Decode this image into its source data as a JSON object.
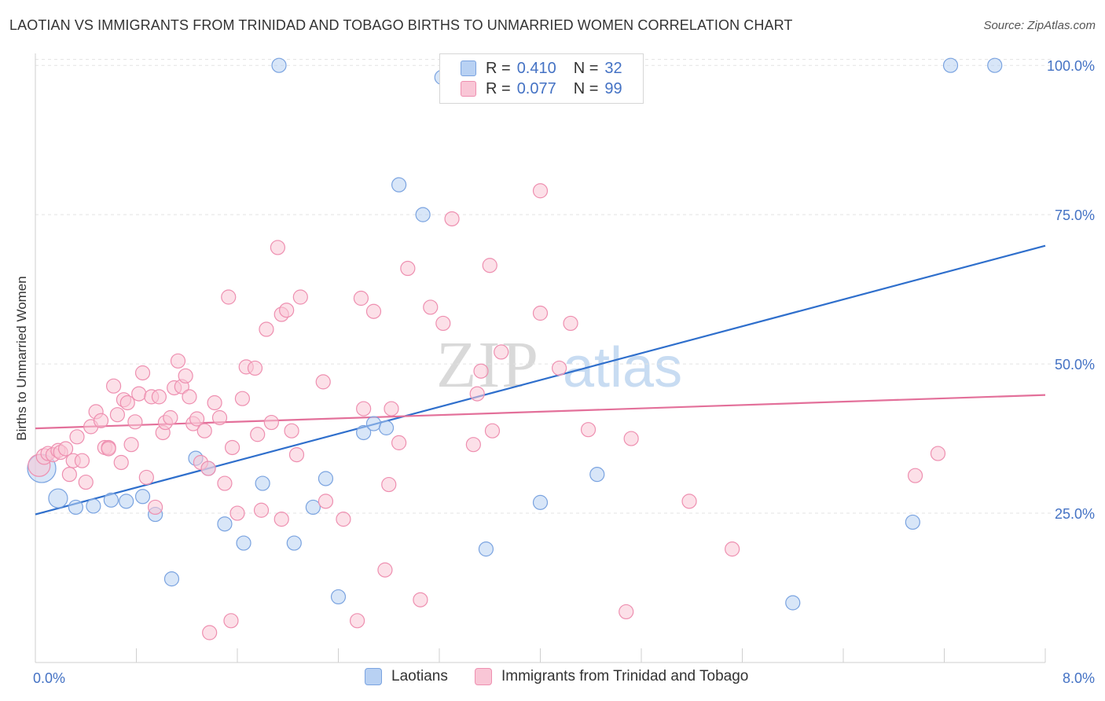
{
  "title": "LAOTIAN VS IMMIGRANTS FROM TRINIDAD AND TOBAGO BIRTHS TO UNMARRIED WOMEN CORRELATION CHART",
  "source": "Source: ZipAtlas.com",
  "legend": {
    "rows": [
      {
        "r_label": "R =",
        "r_value": "0.410",
        "n_label": "N =",
        "n_value": "32",
        "fill": "#b8d1f3",
        "stroke": "#7aa3e0"
      },
      {
        "r_label": "R =",
        "r_value": "0.077",
        "n_label": "N =",
        "n_value": "99",
        "fill": "#f9c6d6",
        "stroke": "#ee8fb0"
      }
    ]
  },
  "bottom_legend": [
    {
      "label": "Laotians",
      "fill": "#b8d1f3",
      "stroke": "#7aa3e0"
    },
    {
      "label": "Immigrants from Trinidad and Tobago",
      "fill": "#f9c6d6",
      "stroke": "#ee8fb0"
    }
  ],
  "colors": {
    "blue_line": "#2f6fcc",
    "pink_line": "#e3709a",
    "grid": "#e3e3e3"
  },
  "chart_data": {
    "type": "scatter",
    "title": "LAOTIAN VS IMMIGRANTS FROM TRINIDAD AND TOBAGO BIRTHS TO UNMARRIED WOMEN CORRELATION CHART",
    "xlabel": "",
    "ylabel": "Births to Unmarried Women",
    "xlim": [
      0,
      8
    ],
    "ylim": [
      0,
      102
    ],
    "x_tick_labels": [
      "0.0%",
      "8.0%"
    ],
    "y_ticks": [
      25,
      50,
      75,
      100
    ],
    "y_tick_labels": [
      "25.0%",
      "50.0%",
      "75.0%",
      "100.0%"
    ],
    "grid": true,
    "series": [
      {
        "name": "Laotians",
        "color": "#b8d1f3",
        "stroke": "#7aa3e0",
        "trend": {
          "x": [
            0,
            8
          ],
          "y": [
            24.8,
            69.8
          ]
        },
        "points": [
          [
            0.05,
            32.5,
            18
          ],
          [
            0.18,
            27.5,
            12
          ],
          [
            0.32,
            26,
            9
          ],
          [
            0.46,
            26.2,
            9
          ],
          [
            0.6,
            27.2,
            9
          ],
          [
            0.72,
            27,
            9
          ],
          [
            0.85,
            27.8,
            9
          ],
          [
            0.95,
            24.8,
            9
          ],
          [
            1.08,
            14,
            9
          ],
          [
            1.27,
            34.2,
            9
          ],
          [
            1.37,
            32.5,
            9
          ],
          [
            1.5,
            23.2,
            9
          ],
          [
            1.65,
            20,
            9
          ],
          [
            1.8,
            30,
            9
          ],
          [
            1.93,
            100,
            9
          ],
          [
            2.05,
            20,
            9
          ],
          [
            2.2,
            26,
            9
          ],
          [
            2.3,
            30.8,
            9
          ],
          [
            2.4,
            11,
            9
          ],
          [
            2.6,
            38.5,
            9
          ],
          [
            2.68,
            40,
            9
          ],
          [
            2.78,
            39.3,
            9
          ],
          [
            2.88,
            80,
            9
          ],
          [
            3.07,
            75,
            9
          ],
          [
            3.22,
            98,
            9
          ],
          [
            3.57,
            19,
            9
          ],
          [
            4.0,
            26.8,
            9
          ],
          [
            4.45,
            31.5,
            9
          ],
          [
            6.0,
            10,
            9
          ],
          [
            6.95,
            23.5,
            9
          ],
          [
            7.25,
            100,
            9
          ],
          [
            7.6,
            100,
            9
          ]
        ]
      },
      {
        "name": "Immigrants from Trinidad and Tobago",
        "color": "#f9c6d6",
        "stroke": "#ee8fb0",
        "trend": {
          "x": [
            0,
            8
          ],
          "y": [
            39.2,
            44.8
          ]
        },
        "points": [
          [
            0.03,
            33,
            14
          ],
          [
            0.07,
            34.5,
            10
          ],
          [
            0.1,
            35,
            9
          ],
          [
            0.14,
            34.8,
            9
          ],
          [
            0.18,
            35.5,
            9
          ],
          [
            0.2,
            35.2,
            9
          ],
          [
            0.24,
            35.8,
            9
          ],
          [
            0.27,
            31.5,
            9
          ],
          [
            0.3,
            33.8,
            9
          ],
          [
            0.33,
            37.8,
            9
          ],
          [
            0.37,
            33.8,
            9
          ],
          [
            0.4,
            30.2,
            9
          ],
          [
            0.44,
            39.5,
            9
          ],
          [
            0.48,
            42,
            9
          ],
          [
            0.52,
            40.5,
            9
          ],
          [
            0.55,
            36,
            9
          ],
          [
            0.58,
            36,
            9
          ],
          [
            0.62,
            46.3,
            9
          ],
          [
            0.65,
            41.5,
            9
          ],
          [
            0.68,
            33.5,
            9
          ],
          [
            0.7,
            44,
            9
          ],
          [
            0.73,
            43.5,
            9
          ],
          [
            0.76,
            36.5,
            9
          ],
          [
            0.79,
            40.3,
            9
          ],
          [
            0.82,
            45,
            9
          ],
          [
            0.85,
            48.5,
            9
          ],
          [
            0.88,
            31,
            9
          ],
          [
            0.92,
            44.5,
            9
          ],
          [
            0.95,
            26,
            9
          ],
          [
            0.98,
            44.5,
            9
          ],
          [
            1.01,
            38.5,
            9
          ],
          [
            1.03,
            40.2,
            9
          ],
          [
            1.07,
            41,
            9
          ],
          [
            1.1,
            46,
            9
          ],
          [
            1.13,
            50.5,
            9
          ],
          [
            1.16,
            46.2,
            9
          ],
          [
            1.19,
            48,
            9
          ],
          [
            1.22,
            44.5,
            9
          ],
          [
            1.25,
            40,
            9
          ],
          [
            1.28,
            40.8,
            9
          ],
          [
            1.31,
            33.5,
            9
          ],
          [
            1.34,
            38.8,
            9
          ],
          [
            1.37,
            32.5,
            9
          ],
          [
            1.42,
            43.5,
            9
          ],
          [
            1.46,
            41,
            9
          ],
          [
            1.5,
            30,
            9
          ],
          [
            1.53,
            61.2,
            9
          ],
          [
            1.56,
            36,
            9
          ],
          [
            1.6,
            25,
            9
          ],
          [
            1.64,
            44.2,
            9
          ],
          [
            1.67,
            49.5,
            9
          ],
          [
            1.74,
            49.3,
            9
          ],
          [
            1.76,
            38.2,
            9
          ],
          [
            1.79,
            25.5,
            9
          ],
          [
            1.83,
            55.8,
            9
          ],
          [
            1.87,
            40.2,
            9
          ],
          [
            1.92,
            69.5,
            9
          ],
          [
            1.95,
            58.3,
            9
          ],
          [
            1.99,
            59,
            9
          ],
          [
            2.03,
            38.8,
            9
          ],
          [
            2.07,
            34.8,
            9
          ],
          [
            2.1,
            61.2,
            9
          ],
          [
            2.28,
            47,
            9
          ],
          [
            2.3,
            27,
            9
          ],
          [
            2.44,
            24,
            9
          ],
          [
            2.58,
            61,
            9
          ],
          [
            2.6,
            42.5,
            9
          ],
          [
            2.68,
            58.8,
            9
          ],
          [
            2.77,
            15.5,
            9
          ],
          [
            2.8,
            29.8,
            9
          ],
          [
            2.82,
            42.5,
            9
          ],
          [
            2.88,
            36.8,
            9
          ],
          [
            2.95,
            66,
            9
          ],
          [
            3.13,
            59.5,
            9
          ],
          [
            3.23,
            56.8,
            9
          ],
          [
            3.3,
            74.3,
            9
          ],
          [
            3.47,
            36.5,
            9
          ],
          [
            3.5,
            45,
            9
          ],
          [
            3.53,
            48.8,
            9
          ],
          [
            3.6,
            66.5,
            9
          ],
          [
            3.62,
            38.8,
            9
          ],
          [
            3.69,
            52,
            9
          ],
          [
            4.0,
            58.5,
            9
          ],
          [
            4.0,
            79,
            9
          ],
          [
            4.15,
            49.3,
            9
          ],
          [
            4.24,
            56.8,
            9
          ],
          [
            4.38,
            39,
            9
          ],
          [
            4.68,
            8.5,
            9
          ],
          [
            4.72,
            37.5,
            9
          ],
          [
            5.18,
            27,
            9
          ],
          [
            5.52,
            19,
            9
          ],
          [
            6.97,
            31.3,
            9
          ],
          [
            7.15,
            35,
            9
          ],
          [
            1.38,
            5,
            9
          ],
          [
            1.55,
            7,
            9
          ],
          [
            2.55,
            7,
            9
          ],
          [
            3.05,
            10.5,
            9
          ],
          [
            1.95,
            24,
            9
          ],
          [
            0.58,
            35.8,
            9
          ]
        ]
      }
    ]
  }
}
